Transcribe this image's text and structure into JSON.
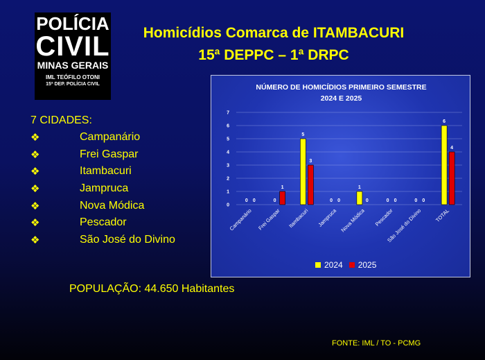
{
  "logo": {
    "line1": "POLÍCIA",
    "line2": "CIVIL",
    "line3": "MINAS GERAIS",
    "line4": "IML TEÓFILO OTONI",
    "line5": "15ª DEP. POLÍCIA CIVIL"
  },
  "header": {
    "title_line1": "Homicídios  Comarca  de ITAMBACURI",
    "title_line2": "15ª DEPPC – 1ª DRPC"
  },
  "cities": {
    "heading": "7 CIDADES:",
    "bullet": "❖",
    "items": [
      "Campanário",
      "Frei Gaspar",
      "Itambacuri",
      "Jampruca",
      "Nova Módica",
      "Pescador",
      "São José do Divino"
    ]
  },
  "population": "POPULAÇÃO: 44.650 Habitantes",
  "source": "FONTE: IML / TO - PCMG",
  "chart_data": {
    "type": "bar",
    "title_line1": "NÚMERO DE HOMICÍDIOS PRIMEIRO SEMESTRE",
    "title_line2": "2024 E 2025",
    "categories": [
      "Campanário",
      "Frei Gaspar",
      "Itambacuri",
      "Jampruca",
      "Nova Módica",
      "Pescador",
      "São José do Divino",
      "TOTAL"
    ],
    "series": [
      {
        "name": "2024",
        "color": "#ffff00",
        "values": [
          0,
          0,
          5,
          0,
          1,
          0,
          0,
          6
        ]
      },
      {
        "name": "2025",
        "color": "#e00000",
        "values": [
          0,
          1,
          3,
          0,
          0,
          0,
          0,
          4
        ]
      }
    ],
    "ylim": [
      0,
      7
    ],
    "yticks": [
      0,
      1,
      2,
      3,
      4,
      5,
      6,
      7
    ],
    "grid": true,
    "legend_position": "bottom"
  }
}
